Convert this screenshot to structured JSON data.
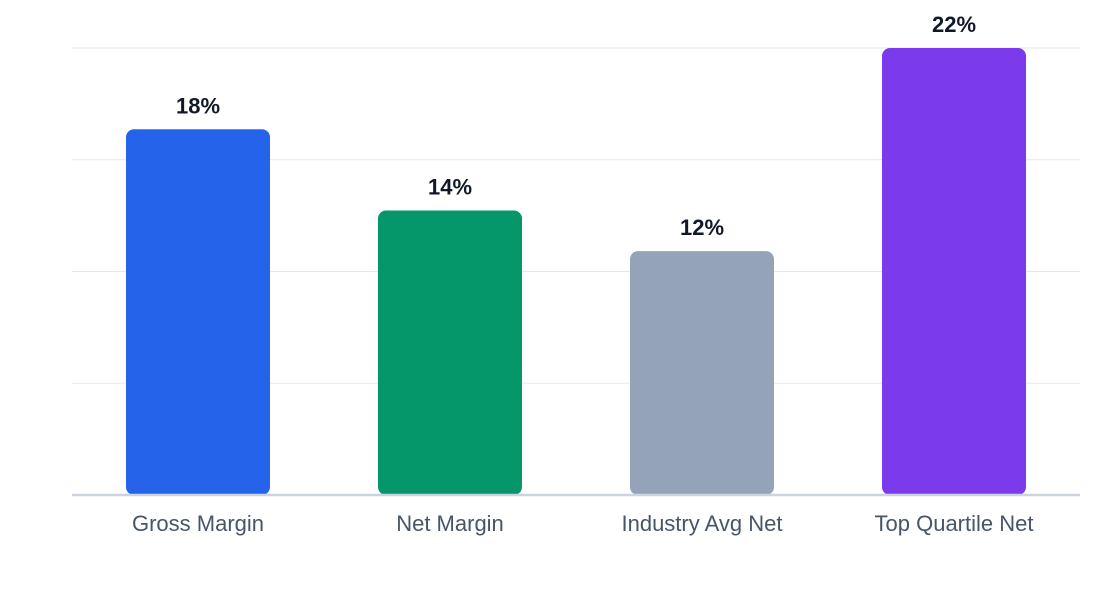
{
  "chart_data": {
    "type": "bar",
    "categories": [
      "Gross Margin",
      "Net Margin",
      "Industry Avg Net",
      "Top Quartile Net"
    ],
    "values": [
      18,
      14,
      12,
      22
    ],
    "value_labels": [
      "18%",
      "14%",
      "12%",
      "22%"
    ],
    "bar_colors": [
      "#2563eb",
      "#059669",
      "#94a3b8",
      "#7c3aed"
    ],
    "ylim": [
      0,
      22
    ],
    "y_gridlines": [
      0,
      5.5,
      11,
      16.5,
      22
    ],
    "grid": true,
    "title": "",
    "xlabel": "",
    "ylabel": "",
    "gridline_color": "#e5e7eb",
    "baseline_color": "#cbd5e1"
  }
}
